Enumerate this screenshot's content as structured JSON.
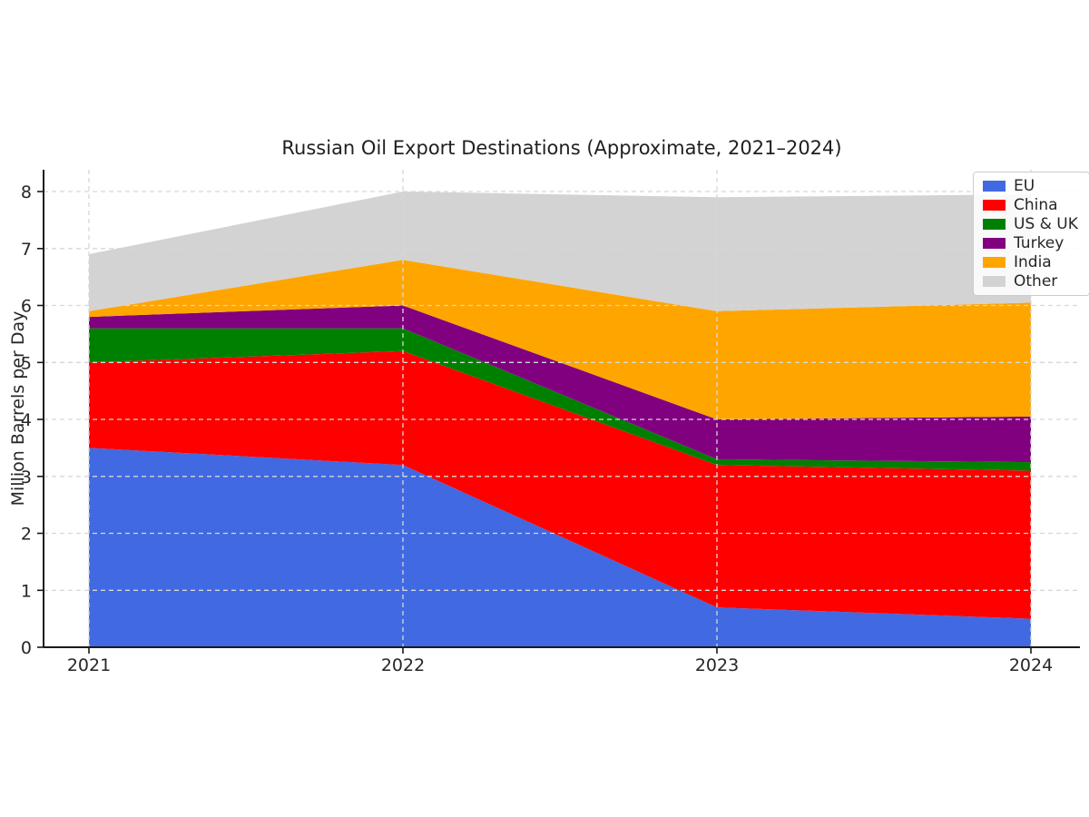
{
  "chart_data": {
    "type": "area",
    "stacked": true,
    "title": "Russian Oil Export Destinations (Approximate, 2021–2024)",
    "xlabel": "",
    "ylabel": "Million Barrels per Day",
    "categories": [
      "2021",
      "2022",
      "2023",
      "2024"
    ],
    "series": [
      {
        "name": "EU",
        "color": "#4169E1",
        "values": [
          3.5,
          3.2,
          0.7,
          0.5
        ]
      },
      {
        "name": "China",
        "color": "#FF0000",
        "values": [
          1.5,
          2.0,
          2.5,
          2.6
        ]
      },
      {
        "name": "US & UK",
        "color": "#008000",
        "values": [
          0.6,
          0.4,
          0.1,
          0.15
        ]
      },
      {
        "name": "Turkey",
        "color": "#800080",
        "values": [
          0.2,
          0.4,
          0.7,
          0.8
        ]
      },
      {
        "name": "India",
        "color": "#FFA500",
        "values": [
          0.1,
          0.8,
          1.9,
          2.0
        ]
      },
      {
        "name": "Other",
        "color": "#D3D3D3",
        "values": [
          1.0,
          1.2,
          2.0,
          1.9
        ]
      }
    ],
    "totals": [
      6.9,
      8.0,
      7.9,
      7.95
    ],
    "y_ticks": [
      0,
      1,
      2,
      3,
      4,
      5,
      6,
      7,
      8
    ],
    "ylim": [
      0,
      8.38
    ],
    "grid": true,
    "grid_style": "dashed",
    "legend_position": "upper right"
  }
}
